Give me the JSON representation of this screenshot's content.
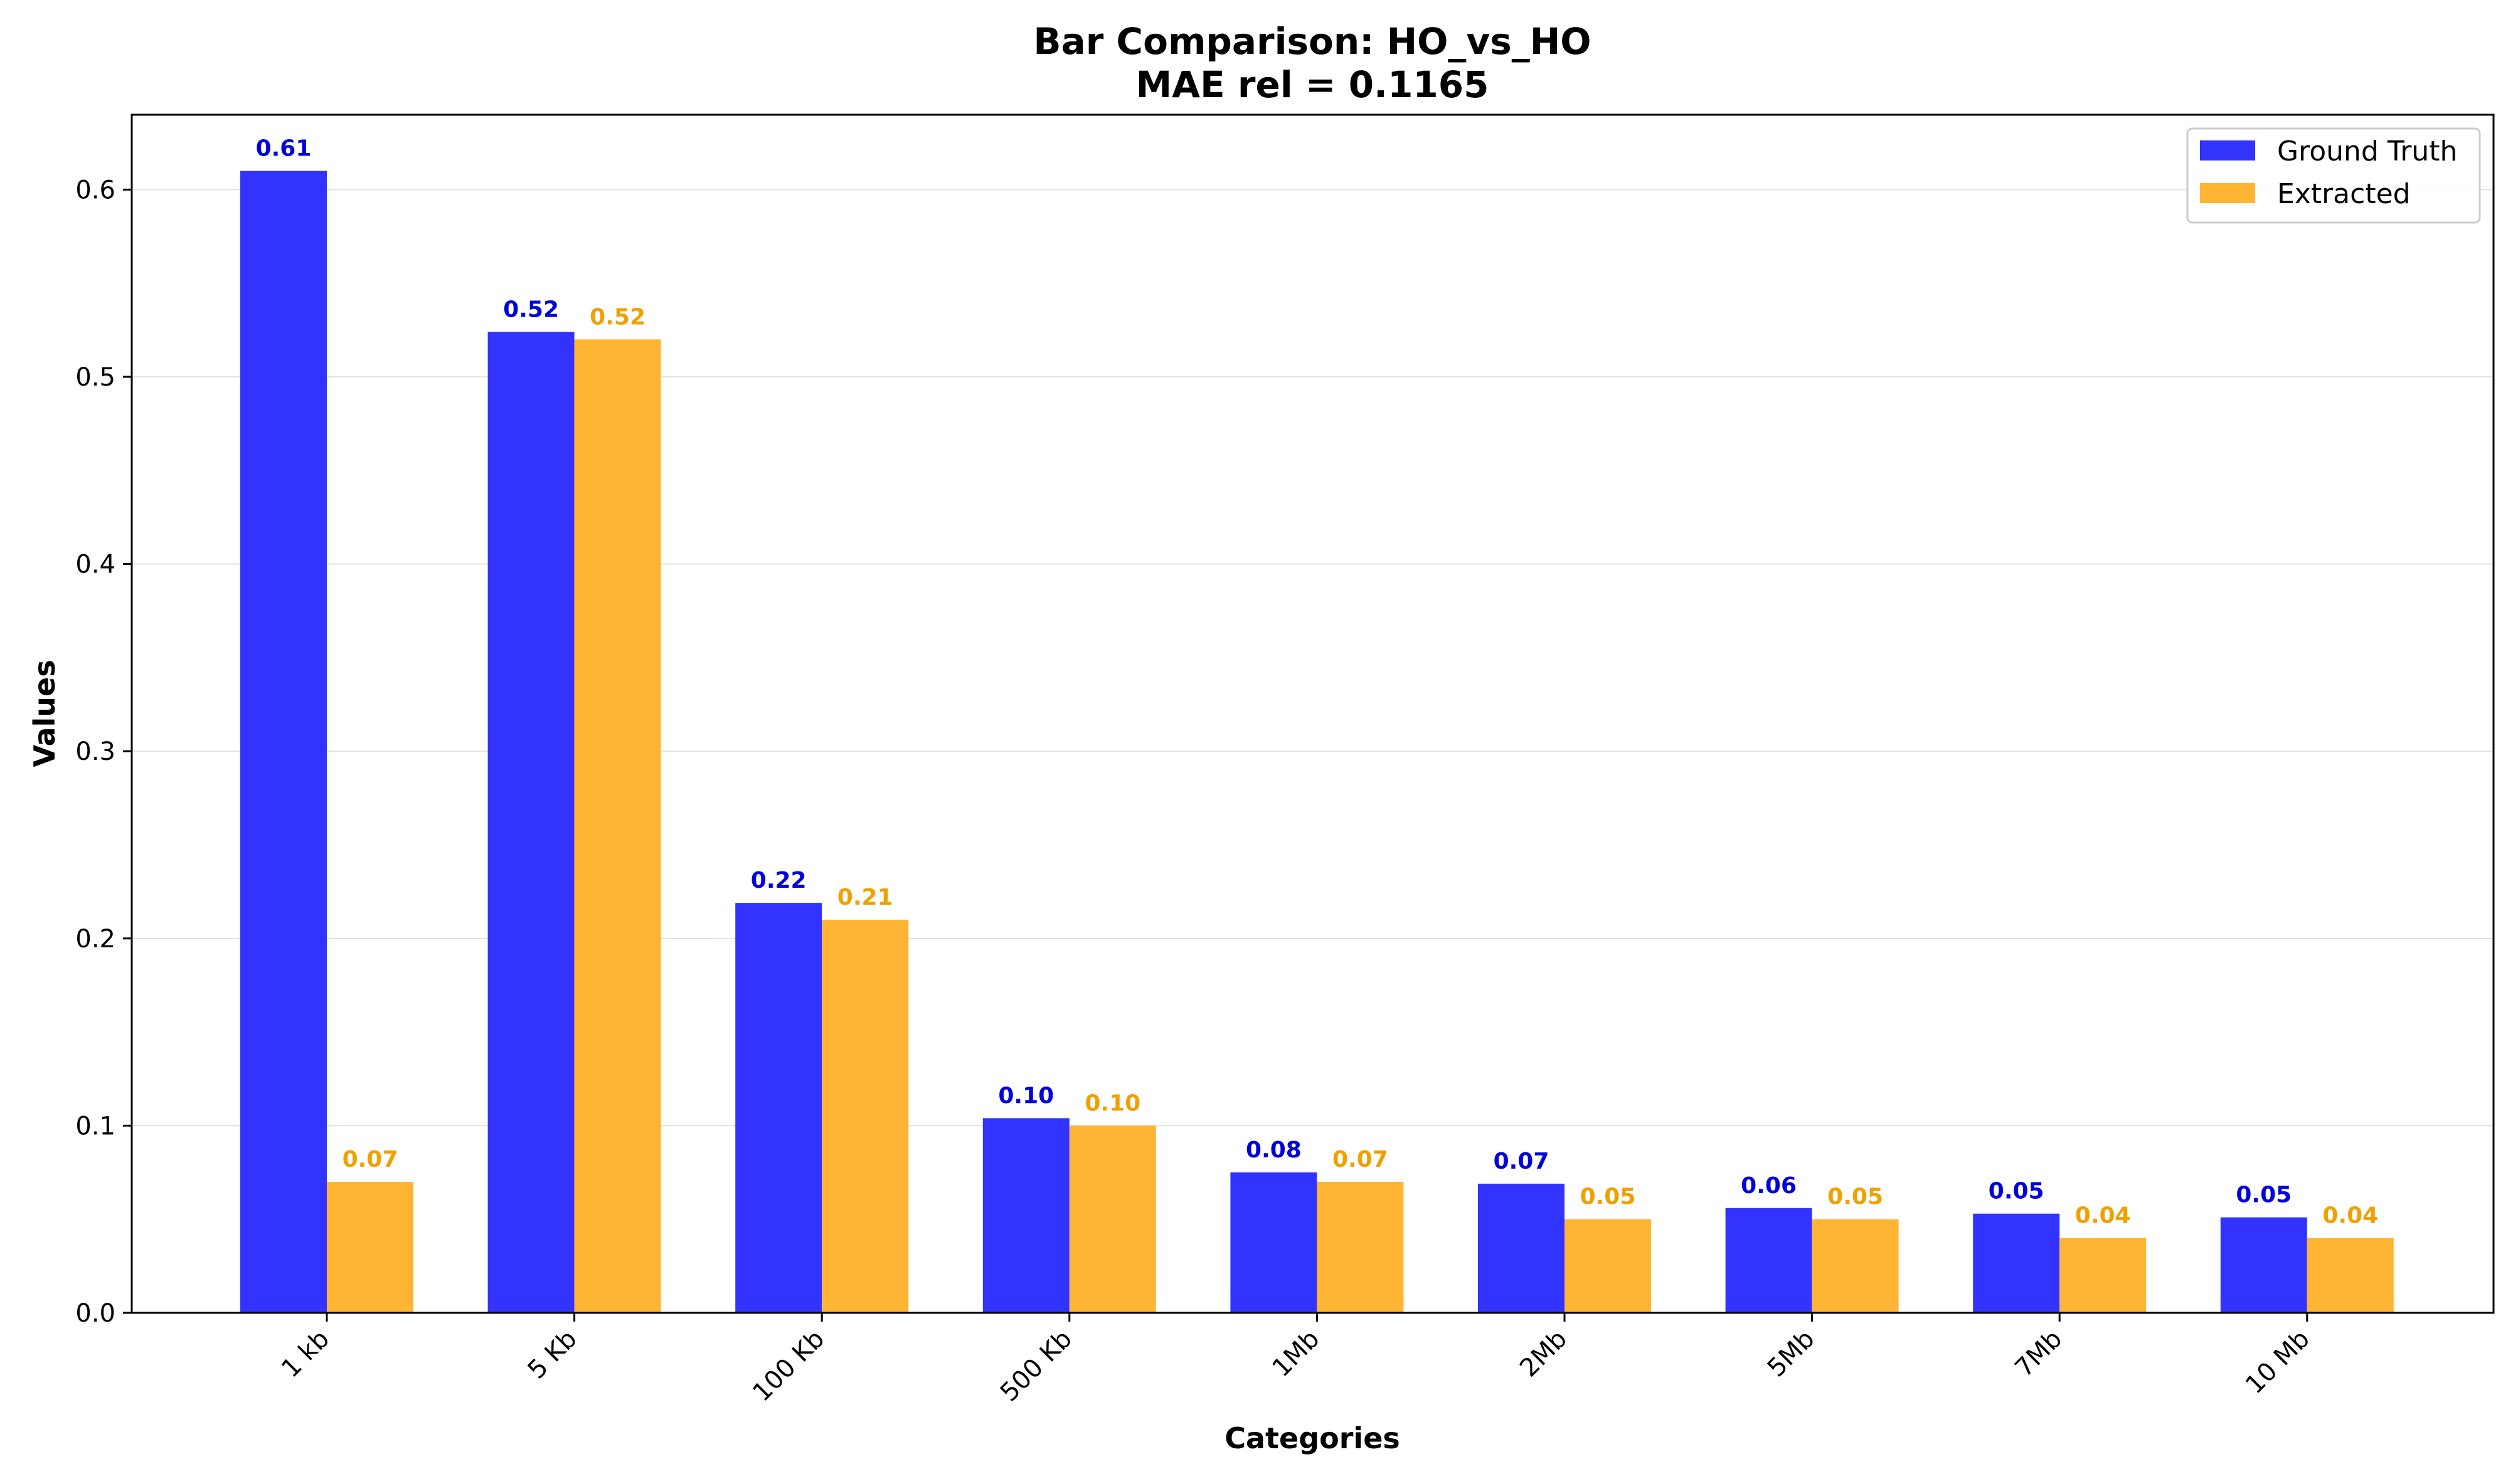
{
  "chart_data": {
    "type": "bar",
    "title": "Bar Comparison: HO_vs_HO",
    "subtitle": "MAE rel = 0.1165",
    "xlabel": "Categories",
    "ylabel": "Values",
    "ylim": [
      0,
      0.64
    ],
    "yticks": [
      0.0,
      0.1,
      0.2,
      0.3,
      0.4,
      0.5,
      0.6
    ],
    "ytick_labels": [
      "0.0",
      "0.1",
      "0.2",
      "0.3",
      "0.4",
      "0.5",
      "0.6"
    ],
    "grid": "horizontal",
    "legend_position": "top-right",
    "categories": [
      "1 kb",
      "5 Kb",
      "100 Kb",
      "500 Kb",
      "1Mb",
      "2Mb",
      "5Mb",
      "7Mb",
      "10 Mb"
    ],
    "series": [
      {
        "name": "Ground Truth",
        "color": "#3333ff",
        "label_color": "#0000dd",
        "values": [
          0.61,
          0.524,
          0.219,
          0.104,
          0.075,
          0.069,
          0.056,
          0.053,
          0.051
        ],
        "value_labels": [
          "0.61",
          "0.52",
          "0.22",
          "0.10",
          "0.08",
          "0.07",
          "0.06",
          "0.05",
          "0.05"
        ]
      },
      {
        "name": "Extracted",
        "color": "#ffb533",
        "label_color": "#f0a000",
        "values": [
          0.07,
          0.52,
          0.21,
          0.1,
          0.07,
          0.05,
          0.05,
          0.04,
          0.04
        ],
        "value_labels": [
          "0.07",
          "0.52",
          "0.21",
          "0.10",
          "0.07",
          "0.05",
          "0.05",
          "0.04",
          "0.04"
        ]
      }
    ]
  }
}
